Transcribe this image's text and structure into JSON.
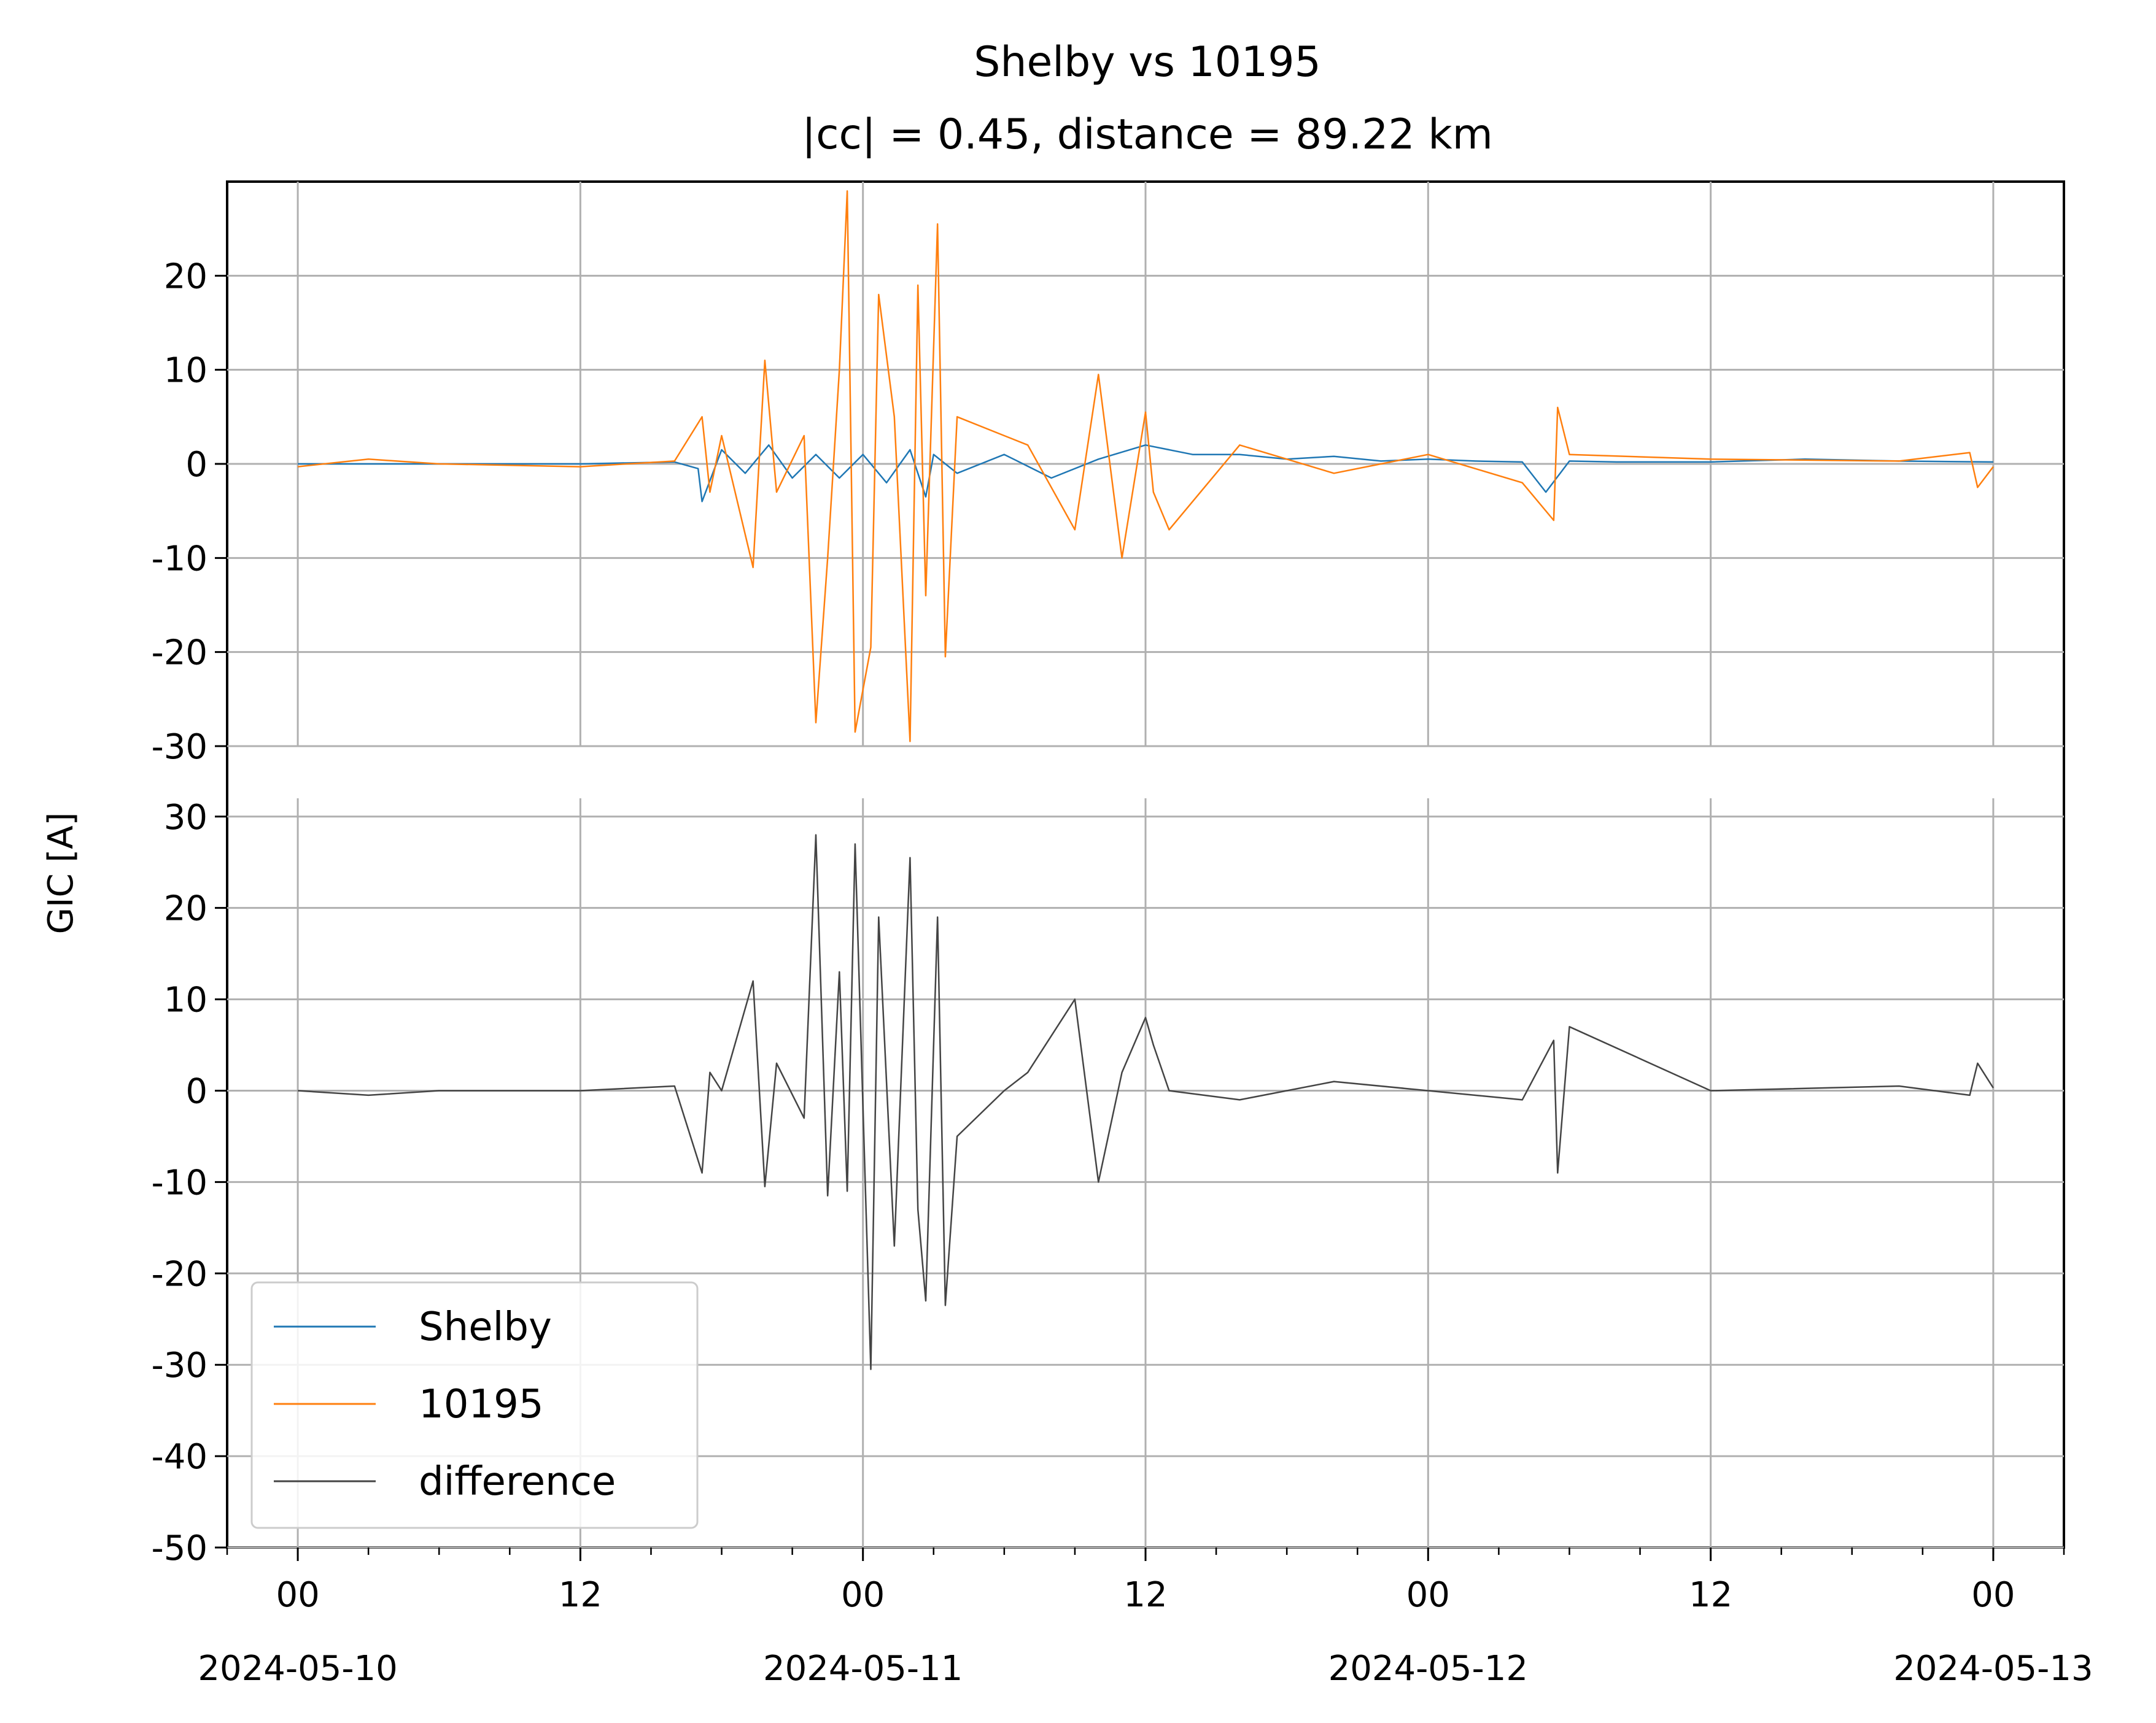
{
  "chart_data": {
    "type": "line",
    "title": "Shelby vs 10195",
    "subtitle": "|cc| = 0.45, distance = 89.22 km",
    "ylabel": "GIC [A]",
    "x_range": [
      "2024-05-09T21:00",
      "2024-05-13T03:00"
    ],
    "x_tick_labels": [
      {
        "time": "2024-05-10T00:00",
        "hour": "00",
        "date": "2024-05-10"
      },
      {
        "time": "2024-05-10T12:00",
        "hour": "12",
        "date": ""
      },
      {
        "time": "2024-05-11T00:00",
        "hour": "00",
        "date": "2024-05-11"
      },
      {
        "time": "2024-05-11T12:00",
        "hour": "12",
        "date": ""
      },
      {
        "time": "2024-05-12T00:00",
        "hour": "00",
        "date": "2024-05-12"
      },
      {
        "time": "2024-05-12T12:00",
        "hour": "12",
        "date": ""
      },
      {
        "time": "2024-05-13T00:00",
        "hour": "00",
        "date": "2024-05-13"
      }
    ],
    "grid": true,
    "legend_position": "lower-left",
    "panels": [
      {
        "ylim": [
          -30,
          30
        ],
        "yticks": [
          -30,
          -20,
          -10,
          0,
          10,
          20
        ],
        "series": [
          {
            "name": "Shelby",
            "color": "#1f77b4",
            "x": [
              "2024-05-10T00:00",
              "2024-05-10T06:00",
              "2024-05-10T12:00",
              "2024-05-10T16:00",
              "2024-05-10T17:00",
              "2024-05-10T17:10",
              "2024-05-10T18:00",
              "2024-05-10T19:00",
              "2024-05-10T20:00",
              "2024-05-10T21:00",
              "2024-05-10T22:00",
              "2024-05-10T23:00",
              "2024-05-11T00:00",
              "2024-05-11T01:00",
              "2024-05-11T02:00",
              "2024-05-11T02:40",
              "2024-05-11T03:00",
              "2024-05-11T04:00",
              "2024-05-11T06:00",
              "2024-05-11T08:00",
              "2024-05-11T10:00",
              "2024-05-11T12:00",
              "2024-05-11T14:00",
              "2024-05-11T16:00",
              "2024-05-11T18:00",
              "2024-05-11T20:00",
              "2024-05-11T22:00",
              "2024-05-12T00:00",
              "2024-05-12T02:00",
              "2024-05-12T04:00",
              "2024-05-12T05:00",
              "2024-05-12T06:00",
              "2024-05-12T08:00",
              "2024-05-12T12:00",
              "2024-05-12T16:00",
              "2024-05-12T20:00",
              "2024-05-13T00:00"
            ],
            "values": [
              0,
              0,
              0,
              0.2,
              -0.5,
              -4,
              1.5,
              -1,
              2,
              -1.5,
              1,
              -1.5,
              1,
              -2,
              1.5,
              -3.5,
              1,
              -1,
              1,
              -1.5,
              0.5,
              2,
              1,
              1,
              0.5,
              0.8,
              0.3,
              0.5,
              0.3,
              0.2,
              -3,
              0.3,
              0.2,
              0.2,
              0.5,
              0.3,
              0.2
            ]
          },
          {
            "name": "10195",
            "color": "#ff7f0e",
            "x": [
              "2024-05-10T00:00",
              "2024-05-10T03:00",
              "2024-05-10T06:00",
              "2024-05-10T12:00",
              "2024-05-10T16:00",
              "2024-05-10T17:10",
              "2024-05-10T17:30",
              "2024-05-10T18:00",
              "2024-05-10T19:20",
              "2024-05-10T19:50",
              "2024-05-10T20:20",
              "2024-05-10T21:30",
              "2024-05-10T22:00",
              "2024-05-10T22:30",
              "2024-05-10T23:00",
              "2024-05-10T23:20",
              "2024-05-10T23:40",
              "2024-05-11T00:20",
              "2024-05-11T00:40",
              "2024-05-11T01:20",
              "2024-05-11T02:00",
              "2024-05-11T02:20",
              "2024-05-11T02:40",
              "2024-05-11T03:10",
              "2024-05-11T03:30",
              "2024-05-11T04:00",
              "2024-05-11T06:00",
              "2024-05-11T07:00",
              "2024-05-11T09:00",
              "2024-05-11T10:00",
              "2024-05-11T11:00",
              "2024-05-11T12:00",
              "2024-05-11T12:20",
              "2024-05-11T13:00",
              "2024-05-11T16:00",
              "2024-05-11T20:00",
              "2024-05-12T00:00",
              "2024-05-12T04:00",
              "2024-05-12T05:20",
              "2024-05-12T05:30",
              "2024-05-12T06:00",
              "2024-05-12T12:00",
              "2024-05-12T20:00",
              "2024-05-12T23:00",
              "2024-05-12T23:20",
              "2024-05-13T00:00"
            ],
            "values": [
              -0.3,
              0.5,
              0,
              -0.3,
              0.3,
              5,
              -3,
              3,
              -11,
              11,
              -3,
              3,
              -27.5,
              -10,
              10,
              29,
              -28.5,
              -19.5,
              18,
              5,
              -29.5,
              19,
              -14,
              25.5,
              -20.5,
              5,
              3,
              2,
              -7,
              9.5,
              -10,
              5.5,
              -3,
              -7,
              2,
              -1,
              1,
              -2,
              -6,
              6,
              1,
              0.5,
              0.3,
              1.2,
              -2.5,
              -0.3
            ]
          }
        ]
      },
      {
        "ylim": [
          -50,
          32
        ],
        "yticks": [
          -50,
          -40,
          -30,
          -20,
          -10,
          0,
          10,
          20,
          30
        ],
        "series": [
          {
            "name": "difference",
            "color": "#444444",
            "x": [
              "2024-05-10T00:00",
              "2024-05-10T03:00",
              "2024-05-10T06:00",
              "2024-05-10T12:00",
              "2024-05-10T16:00",
              "2024-05-10T17:10",
              "2024-05-10T17:30",
              "2024-05-10T18:00",
              "2024-05-10T19:20",
              "2024-05-10T19:50",
              "2024-05-10T20:20",
              "2024-05-10T21:30",
              "2024-05-10T22:00",
              "2024-05-10T22:30",
              "2024-05-10T23:00",
              "2024-05-10T23:20",
              "2024-05-10T23:40",
              "2024-05-11T00:20",
              "2024-05-11T00:40",
              "2024-05-11T01:20",
              "2024-05-11T02:00",
              "2024-05-11T02:20",
              "2024-05-11T02:40",
              "2024-05-11T03:10",
              "2024-05-11T03:30",
              "2024-05-11T04:00",
              "2024-05-11T06:00",
              "2024-05-11T07:00",
              "2024-05-11T09:00",
              "2024-05-11T10:00",
              "2024-05-11T11:00",
              "2024-05-11T12:00",
              "2024-05-11T12:20",
              "2024-05-11T13:00",
              "2024-05-11T16:00",
              "2024-05-11T20:00",
              "2024-05-12T00:00",
              "2024-05-12T04:00",
              "2024-05-12T05:20",
              "2024-05-12T05:30",
              "2024-05-12T06:00",
              "2024-05-12T12:00",
              "2024-05-12T20:00",
              "2024-05-12T23:00",
              "2024-05-12T23:20",
              "2024-05-13T00:00"
            ],
            "values": [
              0,
              -0.5,
              0,
              0,
              0.5,
              -9,
              2,
              0,
              12,
              -10.5,
              3,
              -3,
              28,
              -11.5,
              13,
              -11,
              27,
              -30.5,
              19,
              -17,
              25.5,
              -13,
              -23,
              19,
              -23.5,
              -5,
              0,
              2,
              10,
              -10,
              2,
              8,
              5,
              0,
              -1,
              1,
              0,
              -1,
              5.5,
              -9,
              7,
              0,
              0.5,
              -0.5,
              3,
              0.3
            ]
          }
        ]
      }
    ]
  }
}
